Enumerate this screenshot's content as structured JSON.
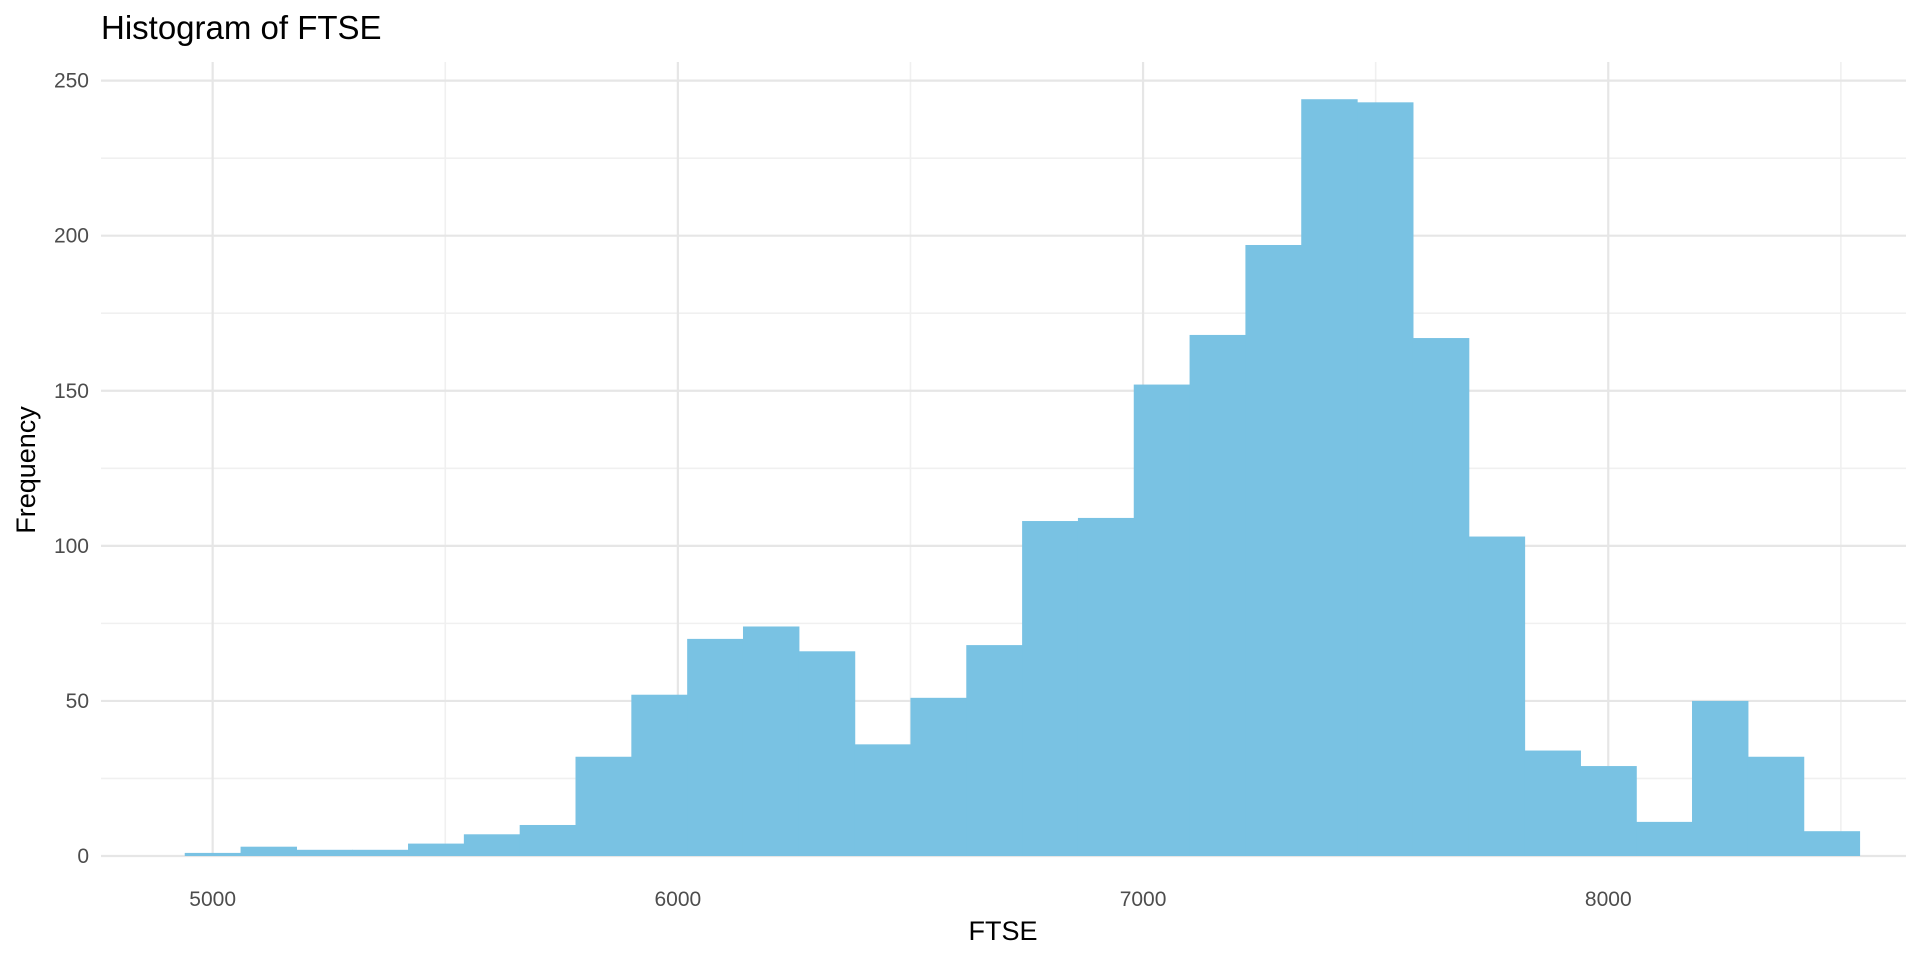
{
  "chart_data": {
    "type": "bar",
    "title": "Histogram of FTSE",
    "xlabel": "FTSE",
    "ylabel": "Frequency",
    "xlim": [
      4760,
      8640
    ],
    "ylim": [
      0,
      256
    ],
    "x_ticks": [
      5000,
      6000,
      7000,
      8000
    ],
    "y_ticks": [
      0,
      50,
      100,
      150,
      200,
      250
    ],
    "grid": true,
    "bar_color": "#79c2e3",
    "bin_width": 120,
    "bins": [
      {
        "x_start": 4940,
        "x_end": 5060,
        "count": 1
      },
      {
        "x_start": 5060,
        "x_end": 5180,
        "count": 3
      },
      {
        "x_start": 5180,
        "x_end": 5300,
        "count": 2
      },
      {
        "x_start": 5300,
        "x_end": 5420,
        "count": 2
      },
      {
        "x_start": 5420,
        "x_end": 5540,
        "count": 4
      },
      {
        "x_start": 5540,
        "x_end": 5660,
        "count": 7
      },
      {
        "x_start": 5660,
        "x_end": 5780,
        "count": 10
      },
      {
        "x_start": 5780,
        "x_end": 5900,
        "count": 32
      },
      {
        "x_start": 5900,
        "x_end": 6020,
        "count": 52
      },
      {
        "x_start": 6020,
        "x_end": 6140,
        "count": 70
      },
      {
        "x_start": 6140,
        "x_end": 6260,
        "count": 74
      },
      {
        "x_start": 6260,
        "x_end": 6380,
        "count": 66
      },
      {
        "x_start": 6380,
        "x_end": 6500,
        "count": 36
      },
      {
        "x_start": 6500,
        "x_end": 6620,
        "count": 51
      },
      {
        "x_start": 6620,
        "x_end": 6740,
        "count": 68
      },
      {
        "x_start": 6740,
        "x_end": 6860,
        "count": 108
      },
      {
        "x_start": 6860,
        "x_end": 6980,
        "count": 109
      },
      {
        "x_start": 6980,
        "x_end": 7100,
        "count": 152
      },
      {
        "x_start": 7100,
        "x_end": 7220,
        "count": 168
      },
      {
        "x_start": 7220,
        "x_end": 7340,
        "count": 197
      },
      {
        "x_start": 7340,
        "x_end": 7460,
        "count": 244
      },
      {
        "x_start": 7460,
        "x_end": 7580,
        "count": 243
      },
      {
        "x_start": 7580,
        "x_end": 7700,
        "count": 167
      },
      {
        "x_start": 7700,
        "x_end": 7820,
        "count": 103
      },
      {
        "x_start": 7820,
        "x_end": 7940,
        "count": 34
      },
      {
        "x_start": 7940,
        "x_end": 8060,
        "count": 29
      },
      {
        "x_start": 8060,
        "x_end": 8180,
        "count": 11
      },
      {
        "x_start": 8180,
        "x_end": 8300,
        "count": 50
      },
      {
        "x_start": 8300,
        "x_end": 8420,
        "count": 32
      },
      {
        "x_start": 8420,
        "x_end": 8540,
        "count": 8
      }
    ]
  }
}
